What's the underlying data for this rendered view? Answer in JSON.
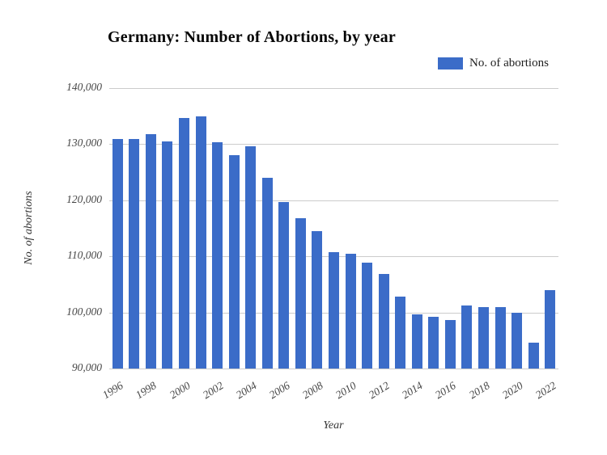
{
  "chart": {
    "title": "Germany: Number of Abortions, by year",
    "legend_label": "No. of abortions",
    "ylabel": "No. of abortions",
    "xlabel": "Year"
  },
  "colors": {
    "bar": "#3B6CC8",
    "gridline": "#CCCCCC",
    "title_text": "#050505",
    "tick_text": "#464646"
  },
  "chart_data": {
    "type": "bar",
    "title": "Germany: Number of Abortions, by year",
    "xlabel": "Year",
    "ylabel": "No. of abortions",
    "legend": [
      "No. of abortions"
    ],
    "legend_position": "top-right",
    "grid": true,
    "ylim": [
      90000,
      140000
    ],
    "y_tick_step": 10000,
    "y_tick_labels": [
      "90,000",
      "100,000",
      "110,000",
      "120,000",
      "130,000",
      "140,000"
    ],
    "x_tick_labels": [
      "1996",
      "1998",
      "2000",
      "2002",
      "2004",
      "2006",
      "2008",
      "2010",
      "2012",
      "2014",
      "2016",
      "2018",
      "2020",
      "2022"
    ],
    "categories": [
      1996,
      1997,
      1998,
      1999,
      2000,
      2001,
      2002,
      2003,
      2004,
      2005,
      2006,
      2007,
      2008,
      2009,
      2010,
      2011,
      2012,
      2013,
      2014,
      2015,
      2016,
      2017,
      2018,
      2019,
      2020,
      2021,
      2022
    ],
    "values": [
      130899,
      130890,
      131795,
      130471,
      134609,
      134964,
      130387,
      128030,
      129650,
      124023,
      119710,
      116871,
      114484,
      110694,
      110431,
      108867,
      106815,
      102802,
      99715,
      99237,
      98721,
      101209,
      100986,
      100893,
      99948,
      94596,
      103927
    ]
  }
}
